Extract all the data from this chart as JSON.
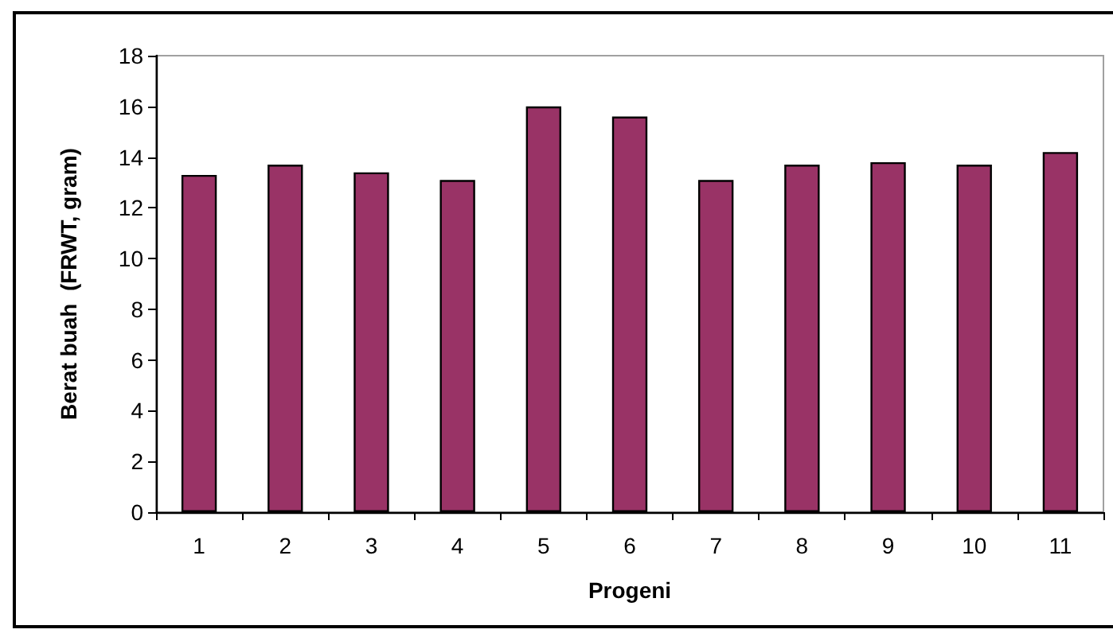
{
  "chart_data": {
    "type": "bar",
    "categories": [
      "1",
      "2",
      "3",
      "4",
      "5",
      "6",
      "7",
      "8",
      "9",
      "10",
      "11"
    ],
    "values": [
      13.3,
      13.7,
      13.4,
      13.1,
      16.0,
      15.6,
      13.1,
      13.7,
      13.8,
      13.7,
      14.2
    ],
    "color": "#993366",
    "xlabel": "Progeni",
    "ylabel": "Berat buah  (FRWT, gram)",
    "ylim": [
      0,
      18
    ],
    "yticks": [
      0,
      2,
      4,
      6,
      8,
      10,
      12,
      14,
      16,
      18
    ],
    "grid": false
  }
}
